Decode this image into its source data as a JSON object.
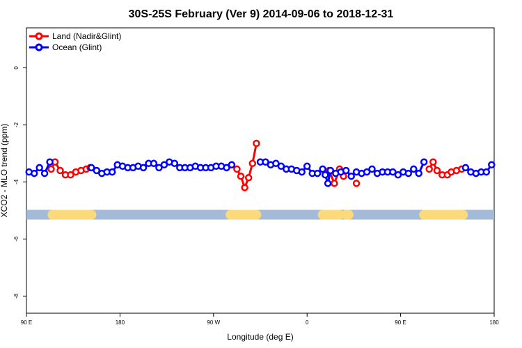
{
  "chart_data": {
    "type": "line",
    "title": "30S-25S February (Ver 9)   2014-09-06 to 2018-12-31",
    "xlabel": "Longitude (deg E)",
    "ylabel": "XCO2 - MLO trend (ppm)",
    "xlim": [
      90,
      450
    ],
    "ylim": [
      -8.6,
      1.4
    ],
    "x_ticks": [
      {
        "value": 90,
        "label": "90 E"
      },
      {
        "value": 162,
        "label": "180"
      },
      {
        "value": 234,
        "label": "90 W"
      },
      {
        "value": 306,
        "label": "0"
      },
      {
        "value": 378,
        "label": "90 E"
      },
      {
        "value": 450,
        "label": "180"
      }
    ],
    "y_ticks": [
      {
        "value": 0,
        "label": "0"
      },
      {
        "value": -2,
        "label": "-2"
      },
      {
        "value": -4,
        "label": "-4"
      },
      {
        "value": -6,
        "label": "-6"
      },
      {
        "value": -8,
        "label": "-8"
      }
    ],
    "grid": false,
    "legend": "top-left",
    "land_mask": {
      "y": -5.15,
      "ocean_color": "#a3bbd9",
      "land_color": "#fcd97a",
      "land_segments": [
        [
          110,
          140
        ],
        [
          247,
          267
        ],
        [
          318,
          331
        ],
        [
          336,
          338
        ],
        [
          396,
          426
        ]
      ]
    },
    "series": [
      {
        "name": "Land (Nadir&Glint)",
        "color": "#ff0000",
        "segments": [
          [
            [
              109,
              -3.55
            ],
            [
              112,
              -3.3
            ],
            [
              116,
              -3.6
            ],
            [
              120,
              -3.75
            ],
            [
              124,
              -3.75
            ],
            [
              128,
              -3.65
            ],
            [
              132,
              -3.6
            ],
            [
              136,
              -3.55
            ],
            [
              139,
              -3.5
            ]
          ],
          [
            [
              252,
              -3.55
            ],
            [
              255,
              -3.8
            ],
            [
              258,
              -4.2
            ],
            [
              261,
              -3.85
            ],
            [
              264,
              -3.35
            ],
            [
              267,
              -2.65
            ]
          ],
          [
            [
              323,
              -3.6
            ],
            [
              327,
              -4.05
            ],
            [
              331,
              -3.55
            ],
            [
              334,
              -3.8
            ]
          ],
          [
            [
              344,
              -4.05
            ]
          ],
          [
            [
              400,
              -3.55
            ],
            [
              403,
              -3.3
            ],
            [
              406,
              -3.6
            ],
            [
              410,
              -3.75
            ],
            [
              414,
              -3.75
            ],
            [
              417,
              -3.65
            ],
            [
              421,
              -3.6
            ],
            [
              425,
              -3.55
            ]
          ]
        ]
      },
      {
        "name": "Ocean (Glint)",
        "color": "#0000ff",
        "segments": [
          [
            [
              92,
              -3.65
            ],
            [
              96,
              -3.7
            ],
            [
              100,
              -3.5
            ],
            [
              104,
              -3.7
            ],
            [
              108,
              -3.3
            ]
          ],
          [
            [
              140,
              -3.5
            ],
            [
              144,
              -3.6
            ],
            [
              148,
              -3.7
            ],
            [
              152,
              -3.65
            ],
            [
              156,
              -3.65
            ],
            [
              160,
              -3.4
            ],
            [
              164,
              -3.45
            ],
            [
              168,
              -3.5
            ],
            [
              172,
              -3.5
            ],
            [
              176,
              -3.45
            ],
            [
              180,
              -3.5
            ],
            [
              184,
              -3.35
            ],
            [
              188,
              -3.35
            ],
            [
              192,
              -3.5
            ],
            [
              196,
              -3.4
            ],
            [
              200,
              -3.3
            ],
            [
              204,
              -3.35
            ],
            [
              208,
              -3.5
            ],
            [
              212,
              -3.5
            ],
            [
              216,
              -3.5
            ],
            [
              220,
              -3.45
            ],
            [
              224,
              -3.5
            ],
            [
              228,
              -3.5
            ],
            [
              232,
              -3.5
            ],
            [
              236,
              -3.45
            ],
            [
              240,
              -3.45
            ],
            [
              244,
              -3.5
            ],
            [
              248,
              -3.4
            ]
          ],
          [
            [
              270,
              -3.3
            ],
            [
              274,
              -3.3
            ],
            [
              278,
              -3.4
            ],
            [
              282,
              -3.35
            ],
            [
              286,
              -3.45
            ],
            [
              290,
              -3.55
            ],
            [
              294,
              -3.55
            ],
            [
              298,
              -3.6
            ],
            [
              302,
              -3.65
            ],
            [
              306,
              -3.45
            ],
            [
              310,
              -3.7
            ],
            [
              314,
              -3.7
            ],
            [
              318,
              -3.55
            ],
            [
              320,
              -3.75
            ],
            [
              322,
              -4.05
            ],
            [
              324,
              -3.6
            ],
            [
              328,
              -3.7
            ],
            [
              332,
              -3.65
            ],
            [
              336,
              -3.6
            ],
            [
              340,
              -3.8
            ],
            [
              344,
              -3.65
            ],
            [
              348,
              -3.7
            ],
            [
              352,
              -3.65
            ],
            [
              356,
              -3.55
            ],
            [
              360,
              -3.7
            ],
            [
              364,
              -3.65
            ],
            [
              368,
              -3.65
            ],
            [
              372,
              -3.65
            ],
            [
              376,
              -3.75
            ],
            [
              380,
              -3.65
            ],
            [
              384,
              -3.7
            ],
            [
              388,
              -3.55
            ],
            [
              392,
              -3.7
            ],
            [
              396,
              -3.3
            ]
          ],
          [
            [
              428,
              -3.5
            ],
            [
              432,
              -3.65
            ],
            [
              436,
              -3.7
            ],
            [
              440,
              -3.65
            ],
            [
              444,
              -3.65
            ],
            [
              448,
              -3.4
            ]
          ]
        ]
      }
    ]
  }
}
